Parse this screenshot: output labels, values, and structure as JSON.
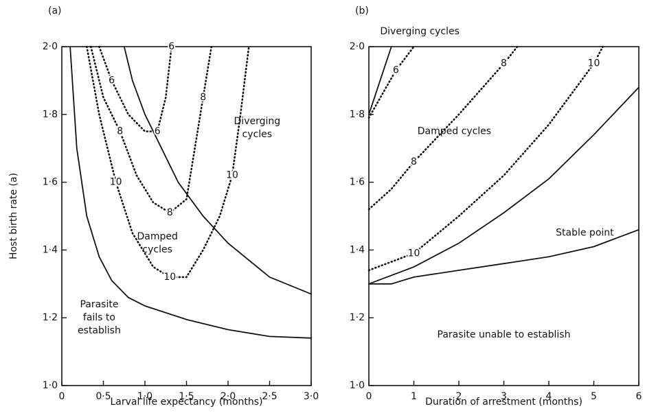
{
  "chart_data": [
    {
      "type": "line",
      "title": "(a)",
      "xlabel": "Larval life expectancy (months)",
      "ylabel": "Host birth rate (a)",
      "xlim": [
        0,
        3.0
      ],
      "ylim": [
        1.0,
        2.0
      ],
      "xticks": [
        0,
        {
          "value": 0.5,
          "label": "0·5"
        },
        {
          "value": 1.0,
          "label": "1·0"
        },
        {
          "value": 1.5,
          "label": "1·5"
        },
        {
          "value": 2.0,
          "label": "2·0"
        },
        {
          "value": 2.5,
          "label": "2·5"
        },
        {
          "value": 3.0,
          "label": "3·0"
        }
      ],
      "yticks": [
        {
          "value": 1.0,
          "label": "1·0"
        },
        {
          "value": 1.2,
          "label": "1·2"
        },
        {
          "value": 1.4,
          "label": "1·4"
        },
        {
          "value": 1.6,
          "label": "1·6"
        },
        {
          "value": 1.8,
          "label": "1·8"
        },
        {
          "value": 2.0,
          "label": "2·0"
        }
      ],
      "series": [
        {
          "style": "solid",
          "color": "#111111",
          "x": [
            0.1,
            0.18,
            0.3,
            0.45,
            0.6,
            0.8,
            1.0,
            1.5,
            2.0,
            2.5,
            3.0
          ],
          "values": [
            2.0,
            1.7,
            1.5,
            1.38,
            1.31,
            1.26,
            1.235,
            1.195,
            1.165,
            1.145,
            1.14
          ]
        },
        {
          "style": "solid",
          "color": "#111111",
          "x": [
            0.75,
            0.85,
            1.0,
            1.2,
            1.4,
            1.7,
            2.0,
            2.5,
            3.0
          ],
          "values": [
            2.0,
            1.9,
            1.8,
            1.7,
            1.6,
            1.5,
            1.42,
            1.32,
            1.27
          ]
        },
        {
          "name": "6",
          "style": "dotted",
          "color": "#111111",
          "x": [
            0.45,
            0.6,
            0.8,
            1.0,
            1.15,
            1.25,
            1.32
          ],
          "values": [
            2.0,
            1.9,
            1.8,
            1.75,
            1.75,
            1.85,
            2.0
          ]
        },
        {
          "name": "8",
          "style": "dotted",
          "color": "#111111",
          "x": [
            0.35,
            0.5,
            0.7,
            0.9,
            1.1,
            1.3,
            1.5,
            1.6,
            1.7,
            1.8
          ],
          "values": [
            2.0,
            1.85,
            1.75,
            1.62,
            1.54,
            1.51,
            1.55,
            1.7,
            1.85,
            2.0
          ]
        },
        {
          "name": "10",
          "style": "dotted",
          "color": "#111111",
          "x": [
            0.3,
            0.45,
            0.65,
            0.85,
            1.1,
            1.3,
            1.5,
            1.7,
            1.9,
            2.05,
            2.15,
            2.25
          ],
          "values": [
            2.0,
            1.8,
            1.6,
            1.45,
            1.35,
            1.32,
            1.32,
            1.4,
            1.5,
            1.62,
            1.8,
            2.0
          ]
        }
      ],
      "annotations": [
        [
          "Diverging",
          "cycles"
        ],
        [
          "Damped",
          "cycles"
        ],
        [
          "Parasite",
          "fails to",
          "establish"
        ]
      ]
    },
    {
      "type": "line",
      "title": "(b)",
      "xlabel": "Duration of arrestment (months)",
      "xlim": [
        0,
        6
      ],
      "ylim": [
        1.0,
        2.0
      ],
      "xticks": [
        0,
        1,
        2,
        3,
        4,
        5,
        6
      ],
      "yticks": [
        {
          "value": 1.0,
          "label": "1·0"
        },
        {
          "value": 1.2,
          "label": "1·2"
        },
        {
          "value": 1.4,
          "label": "1·4"
        },
        {
          "value": 1.6,
          "label": "1·6"
        },
        {
          "value": 1.8,
          "label": "1·8"
        },
        {
          "value": 2.0,
          "label": "2·0"
        }
      ],
      "series": [
        {
          "style": "solid",
          "color": "#111111",
          "x": [
            0,
            0.2,
            0.5
          ],
          "values": [
            1.8,
            1.88,
            2.0
          ]
        },
        {
          "name": "6",
          "style": "dotted",
          "color": "#111111",
          "x": [
            0,
            0.3,
            0.6,
            1.0
          ],
          "values": [
            1.79,
            1.86,
            1.93,
            2.0
          ]
        },
        {
          "name": "8",
          "style": "dotted",
          "color": "#111111",
          "x": [
            0,
            0.5,
            1,
            2,
            3,
            3.3
          ],
          "values": [
            1.52,
            1.58,
            1.66,
            1.8,
            1.95,
            2.0
          ]
        },
        {
          "name": "10",
          "style": "dotted",
          "color": "#111111",
          "x": [
            0,
            1,
            2,
            3,
            4,
            5,
            5.2
          ],
          "values": [
            1.34,
            1.39,
            1.5,
            1.62,
            1.77,
            1.95,
            2.0
          ]
        },
        {
          "style": "solid",
          "color": "#111111",
          "x": [
            0,
            1,
            2,
            3,
            4,
            5,
            6
          ],
          "values": [
            1.3,
            1.35,
            1.42,
            1.51,
            1.61,
            1.74,
            1.88
          ]
        },
        {
          "style": "solid",
          "color": "#111111",
          "x": [
            0,
            0.5,
            1,
            2,
            3,
            4,
            5,
            6
          ],
          "values": [
            1.3,
            1.3,
            1.32,
            1.34,
            1.36,
            1.38,
            1.41,
            1.46
          ]
        }
      ],
      "annotations": [
        [
          "Diverging cycles"
        ],
        [
          "Damped cycles"
        ],
        [
          "Stable point"
        ],
        [
          "Parasite unable to establish"
        ]
      ]
    }
  ]
}
